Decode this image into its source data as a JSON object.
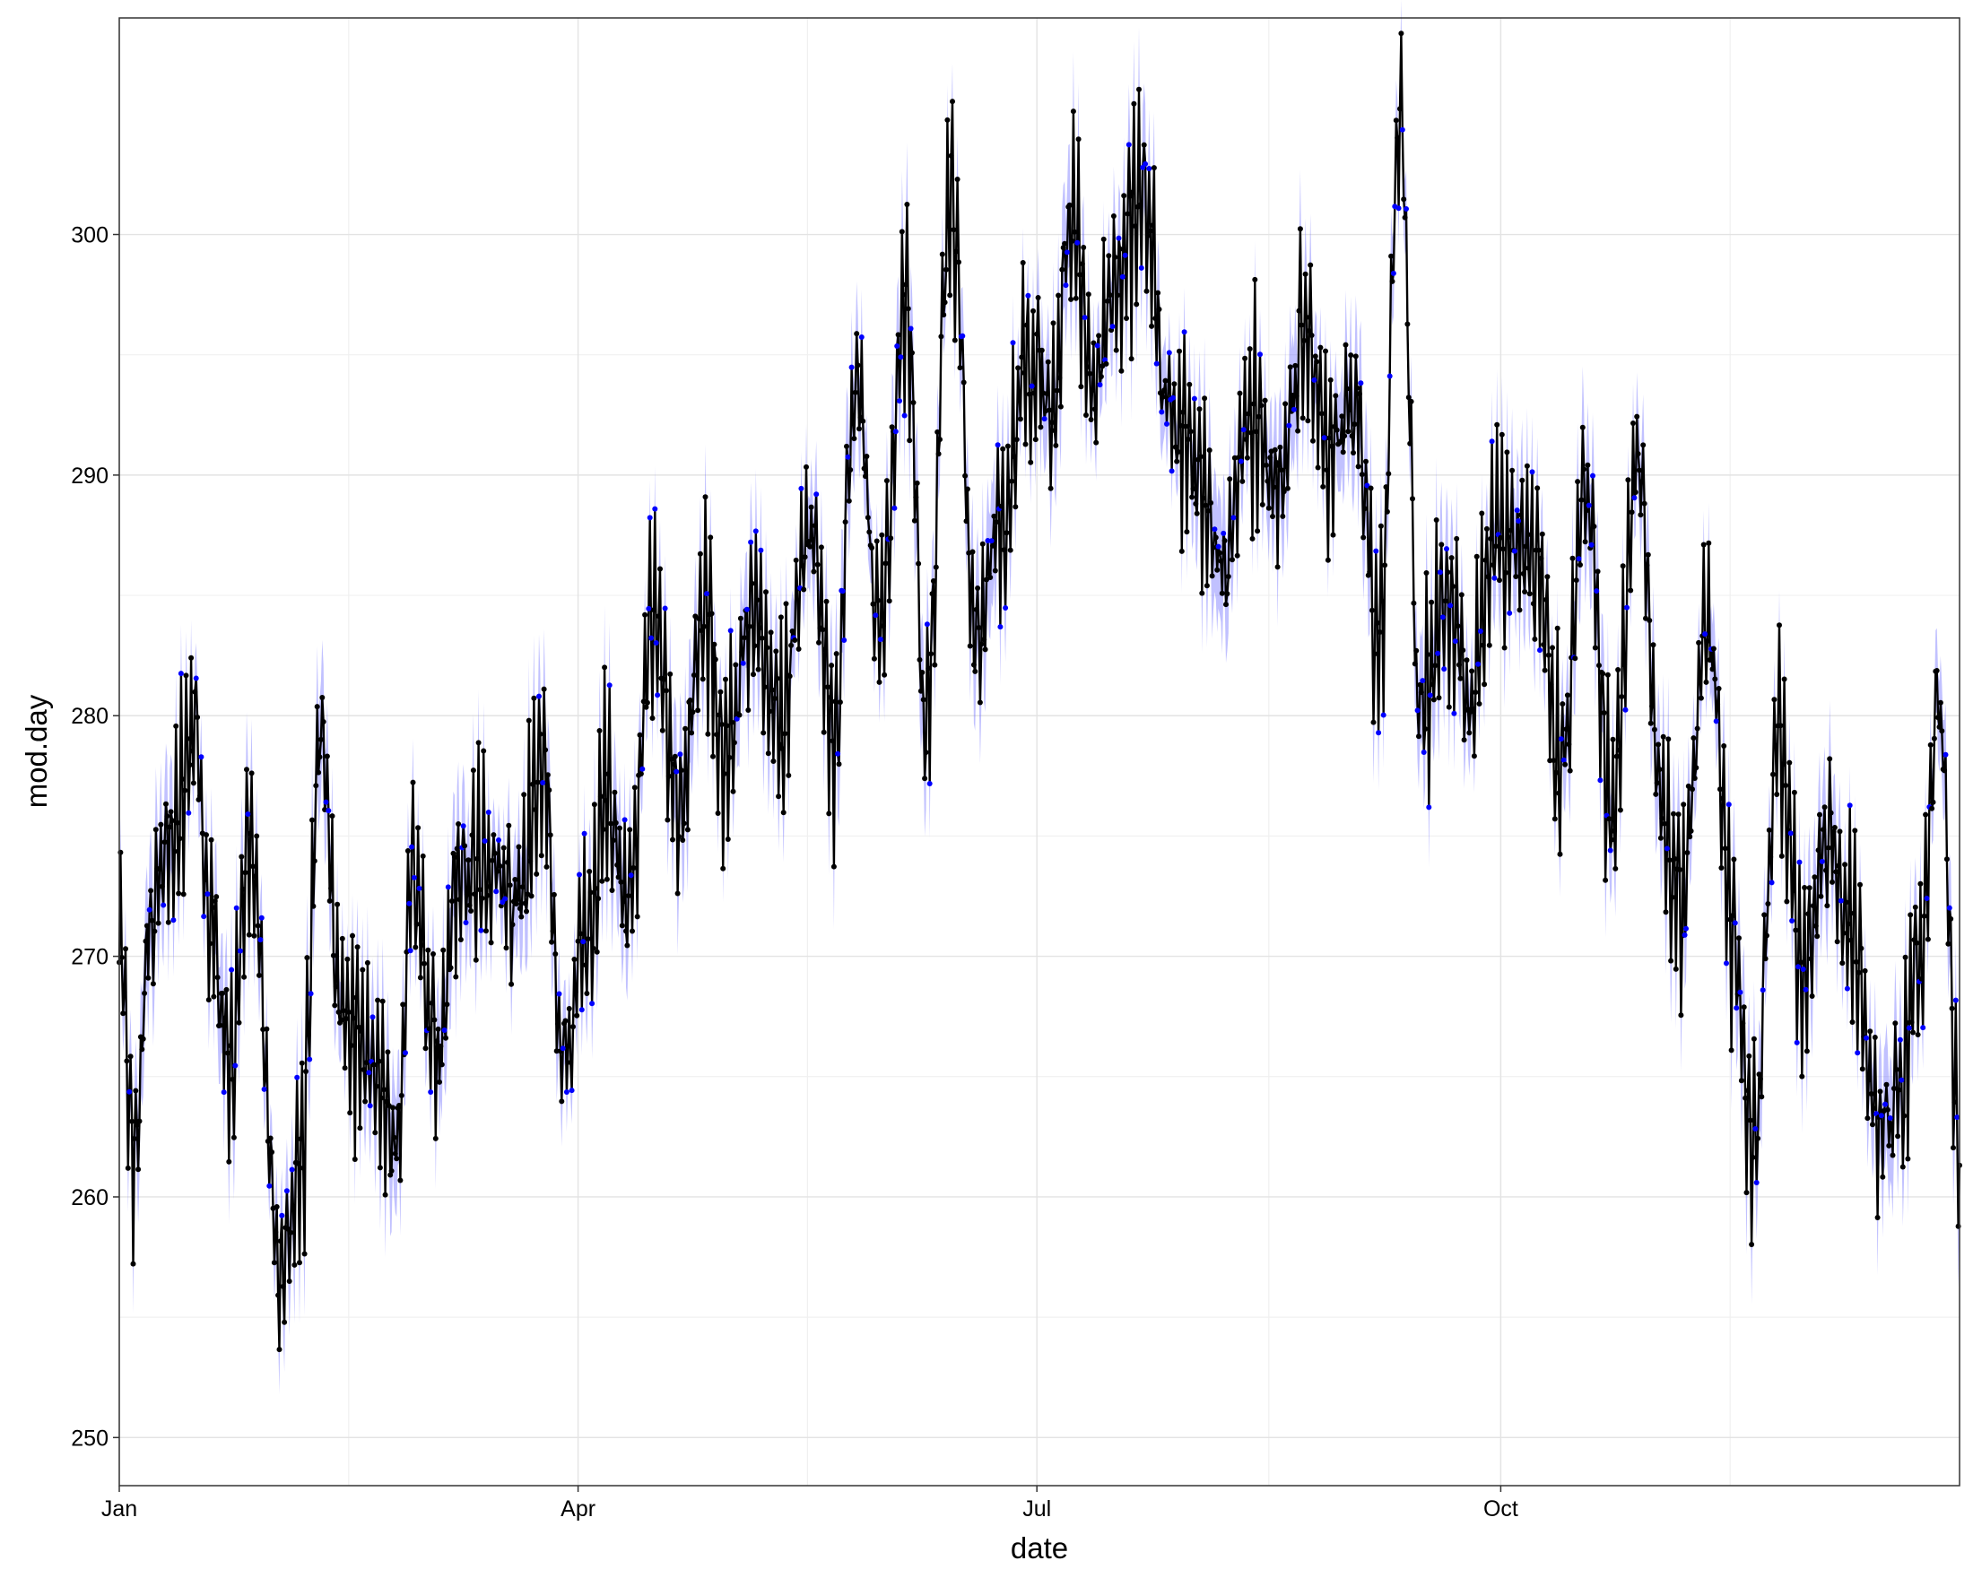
{
  "chart_data": {
    "type": "line",
    "xlabel": "date",
    "ylabel": "mod.day",
    "xlim": [
      "2000-01-01",
      "2000-12-31"
    ],
    "ylim": [
      248,
      309
    ],
    "x_ticks": [
      {
        "date": "2000-01-01",
        "label": "Jan"
      },
      {
        "date": "2000-04-01",
        "label": "Apr"
      },
      {
        "date": "2000-07-01",
        "label": "Jul"
      },
      {
        "date": "2000-10-01",
        "label": "Oct"
      }
    ],
    "y_ticks": [
      250,
      260,
      270,
      280,
      290,
      300
    ],
    "grid": true,
    "legend": "none",
    "colors": {
      "line": "#000000",
      "points": "#000000",
      "predicted_points": "#0000ff",
      "ribbon": "#4d4dff"
    },
    "series_anchors": [
      {
        "date": "2000-01-01",
        "value": 271
      },
      {
        "date": "2000-01-04",
        "value": 262
      },
      {
        "date": "2000-01-07",
        "value": 272
      },
      {
        "date": "2000-01-12",
        "value": 275
      },
      {
        "date": "2000-01-16",
        "value": 280
      },
      {
        "date": "2000-01-19",
        "value": 272
      },
      {
        "date": "2000-01-23",
        "value": 265
      },
      {
        "date": "2000-01-27",
        "value": 275
      },
      {
        "date": "2000-02-02",
        "value": 257
      },
      {
        "date": "2000-02-06",
        "value": 261
      },
      {
        "date": "2000-02-10",
        "value": 279
      },
      {
        "date": "2000-02-14",
        "value": 268
      },
      {
        "date": "2000-02-20",
        "value": 266
      },
      {
        "date": "2000-02-25",
        "value": 262
      },
      {
        "date": "2000-02-28",
        "value": 273
      },
      {
        "date": "2000-03-04",
        "value": 266
      },
      {
        "date": "2000-03-08",
        "value": 273
      },
      {
        "date": "2000-03-14",
        "value": 274
      },
      {
        "date": "2000-03-20",
        "value": 272
      },
      {
        "date": "2000-03-25",
        "value": 278
      },
      {
        "date": "2000-03-29",
        "value": 266
      },
      {
        "date": "2000-04-03",
        "value": 271
      },
      {
        "date": "2000-04-07",
        "value": 277
      },
      {
        "date": "2000-04-11",
        "value": 272
      },
      {
        "date": "2000-04-16",
        "value": 284
      },
      {
        "date": "2000-04-21",
        "value": 276
      },
      {
        "date": "2000-04-26",
        "value": 285
      },
      {
        "date": "2000-04-30",
        "value": 278
      },
      {
        "date": "2000-05-06",
        "value": 284
      },
      {
        "date": "2000-05-11",
        "value": 280
      },
      {
        "date": "2000-05-17",
        "value": 288
      },
      {
        "date": "2000-05-22",
        "value": 279
      },
      {
        "date": "2000-05-26",
        "value": 294
      },
      {
        "date": "2000-05-31",
        "value": 284
      },
      {
        "date": "2000-06-05",
        "value": 297
      },
      {
        "date": "2000-06-09",
        "value": 280
      },
      {
        "date": "2000-06-14",
        "value": 302
      },
      {
        "date": "2000-06-19",
        "value": 283
      },
      {
        "date": "2000-06-24",
        "value": 288
      },
      {
        "date": "2000-06-29",
        "value": 295
      },
      {
        "date": "2000-07-04",
        "value": 293
      },
      {
        "date": "2000-07-08",
        "value": 301
      },
      {
        "date": "2000-07-12",
        "value": 294
      },
      {
        "date": "2000-07-17",
        "value": 298
      },
      {
        "date": "2000-07-22",
        "value": 302
      },
      {
        "date": "2000-07-27",
        "value": 293
      },
      {
        "date": "2000-08-02",
        "value": 290
      },
      {
        "date": "2000-08-07",
        "value": 286
      },
      {
        "date": "2000-08-12",
        "value": 293
      },
      {
        "date": "2000-08-18",
        "value": 289
      },
      {
        "date": "2000-08-23",
        "value": 296
      },
      {
        "date": "2000-08-28",
        "value": 291
      },
      {
        "date": "2000-09-02",
        "value": 293
      },
      {
        "date": "2000-09-07",
        "value": 283
      },
      {
        "date": "2000-09-11",
        "value": 305
      },
      {
        "date": "2000-09-15",
        "value": 280
      },
      {
        "date": "2000-09-20",
        "value": 285
      },
      {
        "date": "2000-09-25",
        "value": 281
      },
      {
        "date": "2000-09-30",
        "value": 288
      },
      {
        "date": "2000-10-04",
        "value": 287
      },
      {
        "date": "2000-10-08",
        "value": 286
      },
      {
        "date": "2000-10-13",
        "value": 278
      },
      {
        "date": "2000-10-18",
        "value": 289
      },
      {
        "date": "2000-10-23",
        "value": 276
      },
      {
        "date": "2000-10-28",
        "value": 291
      },
      {
        "date": "2000-11-02",
        "value": 276
      },
      {
        "date": "2000-11-06",
        "value": 272
      },
      {
        "date": "2000-11-11",
        "value": 284
      },
      {
        "date": "2000-11-16",
        "value": 271
      },
      {
        "date": "2000-11-20",
        "value": 262
      },
      {
        "date": "2000-11-25",
        "value": 279
      },
      {
        "date": "2000-11-30",
        "value": 270
      },
      {
        "date": "2000-12-05",
        "value": 275
      },
      {
        "date": "2000-12-10",
        "value": 271
      },
      {
        "date": "2000-12-15",
        "value": 263
      },
      {
        "date": "2000-12-19",
        "value": 264
      },
      {
        "date": "2000-12-23",
        "value": 270
      },
      {
        "date": "2000-12-27",
        "value": 281
      },
      {
        "date": "2000-12-31",
        "value": 262
      }
    ]
  }
}
